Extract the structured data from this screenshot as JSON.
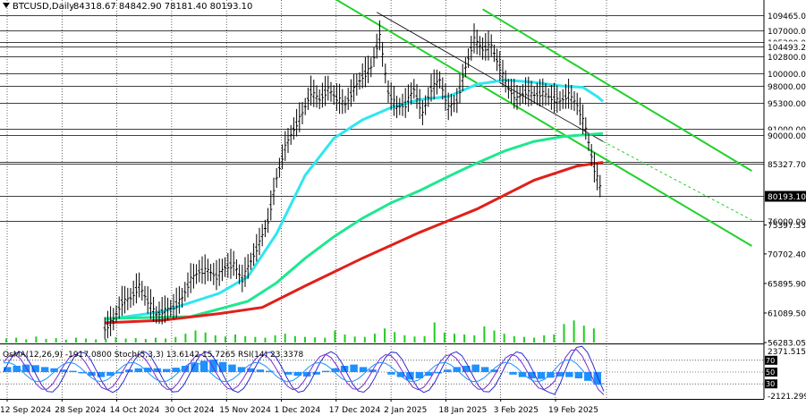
{
  "header": {
    "symbol": "BTCUSD,Daily",
    "ohlc": "84318.67 84842.90 78181.40 80193.10"
  },
  "indicator_label": "OsMA(12,26,9) -1917.0800   Stoch(5,3,3) 13.6142 15.7265 RSI(14) 23.3378",
  "colors": {
    "price_line": "#000000",
    "ema_cyan": "#2fe6f0",
    "ema_green": "#1ee88f",
    "ema_red": "#e0201a",
    "channel": "#22d12a",
    "volume": "#22cc22",
    "osma": "#1e90ff",
    "stoch": "#2b2bcf",
    "rsi": "#7a2bcf"
  },
  "chart_data": {
    "type": "line",
    "title": "BTCUSD,Daily",
    "ylim": [
      56283.05,
      112000
    ],
    "price_levels": [
      "109465.00",
      "107000.00",
      "105200.00",
      "104493.20",
      "102800.00",
      "100000.00",
      "98000.00",
      "95300.00",
      "91000.00",
      "90000.00",
      "85600.00",
      "85327.70",
      "80193.10",
      "76000.00"
    ],
    "y_ticks": [
      "75397.53",
      "70702.40",
      "65895.90",
      "61089.50",
      "56283.05"
    ],
    "osc_ticks": [
      "2371.5152",
      "70",
      "50",
      "30",
      "-2121.299"
    ],
    "x_labels": [
      "12 Sep 2024",
      "28 Sep 2024",
      "14 Oct 2024",
      "30 Oct 2024",
      "15 Nov 2024",
      "1 Dec 2024",
      "17 Dec 2024",
      "2 Jan 2025",
      "18 Jan 2025",
      "3 Feb 2025",
      "19 Feb 2025"
    ],
    "price_series": [
      {
        "x": 0,
        "y": 58500
      },
      {
        "x": 3,
        "y": 60000
      },
      {
        "x": 6,
        "y": 62800
      },
      {
        "x": 9,
        "y": 63500
      },
      {
        "x": 12,
        "y": 65500
      },
      {
        "x": 15,
        "y": 63000
      },
      {
        "x": 18,
        "y": 60800
      },
      {
        "x": 21,
        "y": 61500
      },
      {
        "x": 24,
        "y": 62000
      },
      {
        "x": 27,
        "y": 63500
      },
      {
        "x": 30,
        "y": 66500
      },
      {
        "x": 33,
        "y": 67800
      },
      {
        "x": 36,
        "y": 68000
      },
      {
        "x": 39,
        "y": 67000
      },
      {
        "x": 42,
        "y": 68500
      },
      {
        "x": 45,
        "y": 69000
      },
      {
        "x": 48,
        "y": 66500
      },
      {
        "x": 51,
        "y": 69500
      },
      {
        "x": 54,
        "y": 72500
      },
      {
        "x": 57,
        "y": 76000
      },
      {
        "x": 60,
        "y": 83000
      },
      {
        "x": 63,
        "y": 88000
      },
      {
        "x": 66,
        "y": 91000
      },
      {
        "x": 69,
        "y": 93500
      },
      {
        "x": 72,
        "y": 97000
      },
      {
        "x": 75,
        "y": 95800
      },
      {
        "x": 78,
        "y": 97500
      },
      {
        "x": 81,
        "y": 96000
      },
      {
        "x": 84,
        "y": 95000
      },
      {
        "x": 87,
        "y": 97500
      },
      {
        "x": 90,
        "y": 99500
      },
      {
        "x": 93,
        "y": 101000
      },
      {
        "x": 96,
        "y": 106000
      },
      {
        "x": 99,
        "y": 97000
      },
      {
        "x": 102,
        "y": 94500
      },
      {
        "x": 105,
        "y": 95000
      },
      {
        "x": 108,
        "y": 97500
      },
      {
        "x": 111,
        "y": 93500
      },
      {
        "x": 114,
        "y": 97500
      },
      {
        "x": 117,
        "y": 99000
      },
      {
        "x": 120,
        "y": 94500
      },
      {
        "x": 123,
        "y": 95500
      },
      {
        "x": 126,
        "y": 101000
      },
      {
        "x": 129,
        "y": 105500
      },
      {
        "x": 132,
        "y": 104000
      },
      {
        "x": 135,
        "y": 104500
      },
      {
        "x": 138,
        "y": 101000
      },
      {
        "x": 141,
        "y": 97500
      },
      {
        "x": 144,
        "y": 96000
      },
      {
        "x": 147,
        "y": 97000
      },
      {
        "x": 150,
        "y": 96500
      },
      {
        "x": 153,
        "y": 96800
      },
      {
        "x": 156,
        "y": 96000
      },
      {
        "x": 159,
        "y": 95500
      },
      {
        "x": 162,
        "y": 96500
      },
      {
        "x": 165,
        "y": 95000
      },
      {
        "x": 168,
        "y": 91000
      },
      {
        "x": 171,
        "y": 84500
      },
      {
        "x": 174,
        "y": 80193.1
      }
    ],
    "series": [
      {
        "values": [
          {
            "x": 0,
            "y": 60000
          },
          {
            "x": 20,
            "y": 61300
          },
          {
            "x": 40,
            "y": 64300
          },
          {
            "x": 50,
            "y": 67000
          },
          {
            "x": 60,
            "y": 74000
          },
          {
            "x": 70,
            "y": 83500
          },
          {
            "x": 80,
            "y": 89500
          },
          {
            "x": 90,
            "y": 92500
          },
          {
            "x": 100,
            "y": 94500
          },
          {
            "x": 110,
            "y": 95800
          },
          {
            "x": 120,
            "y": 96300
          },
          {
            "x": 130,
            "y": 98300
          },
          {
            "x": 140,
            "y": 99000
          },
          {
            "x": 150,
            "y": 98600
          },
          {
            "x": 160,
            "y": 98000
          },
          {
            "x": 167,
            "y": 97800
          },
          {
            "x": 172,
            "y": 96300
          },
          {
            "x": 174,
            "y": 95500
          }
        ]
      },
      {
        "values": [
          {
            "x": 0,
            "y": 60200
          },
          {
            "x": 30,
            "y": 60500
          },
          {
            "x": 50,
            "y": 63000
          },
          {
            "x": 60,
            "y": 66000
          },
          {
            "x": 70,
            "y": 70000
          },
          {
            "x": 80,
            "y": 73500
          },
          {
            "x": 90,
            "y": 76500
          },
          {
            "x": 100,
            "y": 79000
          },
          {
            "x": 110,
            "y": 81000
          },
          {
            "x": 120,
            "y": 83300
          },
          {
            "x": 130,
            "y": 85500
          },
          {
            "x": 140,
            "y": 87500
          },
          {
            "x": 150,
            "y": 89000
          },
          {
            "x": 160,
            "y": 89800
          },
          {
            "x": 174,
            "y": 90300
          }
        ]
      },
      {
        "values": [
          {
            "x": 0,
            "y": 59500
          },
          {
            "x": 20,
            "y": 59900
          },
          {
            "x": 40,
            "y": 61000
          },
          {
            "x": 55,
            "y": 62000
          },
          {
            "x": 70,
            "y": 65500
          },
          {
            "x": 90,
            "y": 70000
          },
          {
            "x": 110,
            "y": 74200
          },
          {
            "x": 130,
            "y": 78000
          },
          {
            "x": 150,
            "y": 82700
          },
          {
            "x": 165,
            "y": 85000
          },
          {
            "x": 174,
            "y": 85600
          }
        ]
      }
    ],
    "channel_lines": [
      {
        "start": {
          "x": 72,
          "y": 114500
        },
        "end": {
          "x": 226,
          "y": 72000
        },
        "style": "solid"
      },
      {
        "start": {
          "x": 132,
          "y": 110500
        },
        "end": {
          "x": 226,
          "y": 84200
        },
        "style": "solid"
      },
      {
        "start": {
          "x": 95,
          "y": 110000
        },
        "end": {
          "x": 174,
          "y": 89000
        },
        "style": "thin"
      },
      {
        "start": {
          "x": 174,
          "y": 89000
        },
        "end": {
          "x": 226,
          "y": 76200
        },
        "style": "dashed"
      }
    ],
    "volume": [
      0.1,
      0.12,
      0.08,
      0.15,
      0.09,
      0.11,
      0.07,
      0.12,
      0.1,
      0.08,
      0.09,
      0.13,
      0.1,
      0.11,
      0.09,
      0.12,
      0.1,
      0.14,
      0.22,
      0.3,
      0.25,
      0.18,
      0.15,
      0.2,
      0.16,
      0.14,
      0.12,
      0.18,
      0.22,
      0.16,
      0.14,
      0.13,
      0.12,
      0.3,
      0.2,
      0.15,
      0.14,
      0.22,
      0.35,
      0.26,
      0.18,
      0.15,
      0.16,
      0.5,
      0.25,
      0.22,
      0.2,
      0.18,
      0.4,
      0.3,
      0.22,
      0.16,
      0.14,
      0.12,
      0.18,
      0.2,
      0.46,
      0.55,
      0.42,
      0.35
    ],
    "osma_hist": [
      0.4,
      0.5,
      0.6,
      0.55,
      0.4,
      0.3,
      0.2,
      0.1,
      -0.1,
      -0.3,
      -0.4,
      -0.3,
      -0.1,
      0.2,
      0.3,
      0.35,
      0.3,
      0.25,
      0.35,
      0.5,
      0.7,
      0.9,
      1.0,
      0.8,
      0.6,
      0.4,
      0.3,
      0.2,
      0.1,
      0.0,
      -0.2,
      -0.3,
      -0.35,
      -0.2,
      0.1,
      0.3,
      0.5,
      0.6,
      0.4,
      0.2,
      0.0,
      -0.2,
      -0.4,
      -0.6,
      -0.5,
      -0.3,
      -0.1,
      0.2,
      0.4,
      0.5,
      0.6,
      0.4,
      0.2,
      0.0,
      -0.2,
      -0.4,
      -0.5,
      -0.55,
      -0.45,
      -0.35,
      -0.4,
      -0.5,
      -0.7,
      -1.0
    ]
  }
}
